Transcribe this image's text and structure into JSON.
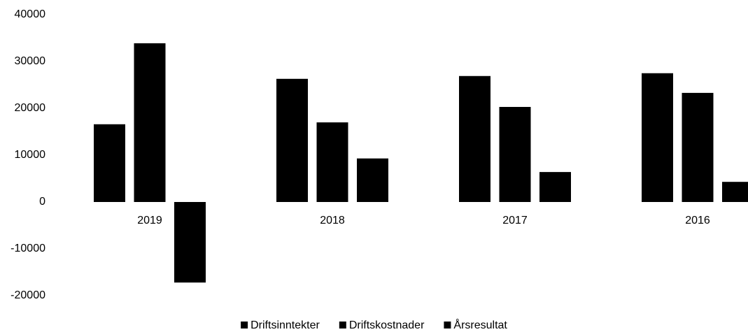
{
  "chart_data": {
    "type": "bar",
    "categories": [
      "2019",
      "2018",
      "2017",
      "2016"
    ],
    "series": [
      {
        "name": "Driftsinntekter",
        "color": "#000000",
        "values": [
          16600,
          26300,
          26900,
          27500
        ]
      },
      {
        "name": "Driftskostnader",
        "color": "#000000",
        "values": [
          33900,
          17000,
          20300,
          23300
        ]
      },
      {
        "name": "Årsresultat",
        "color": "#000000",
        "values": [
          -17200,
          9300,
          6400,
          4300
        ]
      }
    ],
    "ylim": [
      -20000,
      40000
    ],
    "yticks": [
      -20000,
      -10000,
      0,
      10000,
      20000,
      30000,
      40000
    ],
    "grid": false,
    "legend": "bottom"
  }
}
